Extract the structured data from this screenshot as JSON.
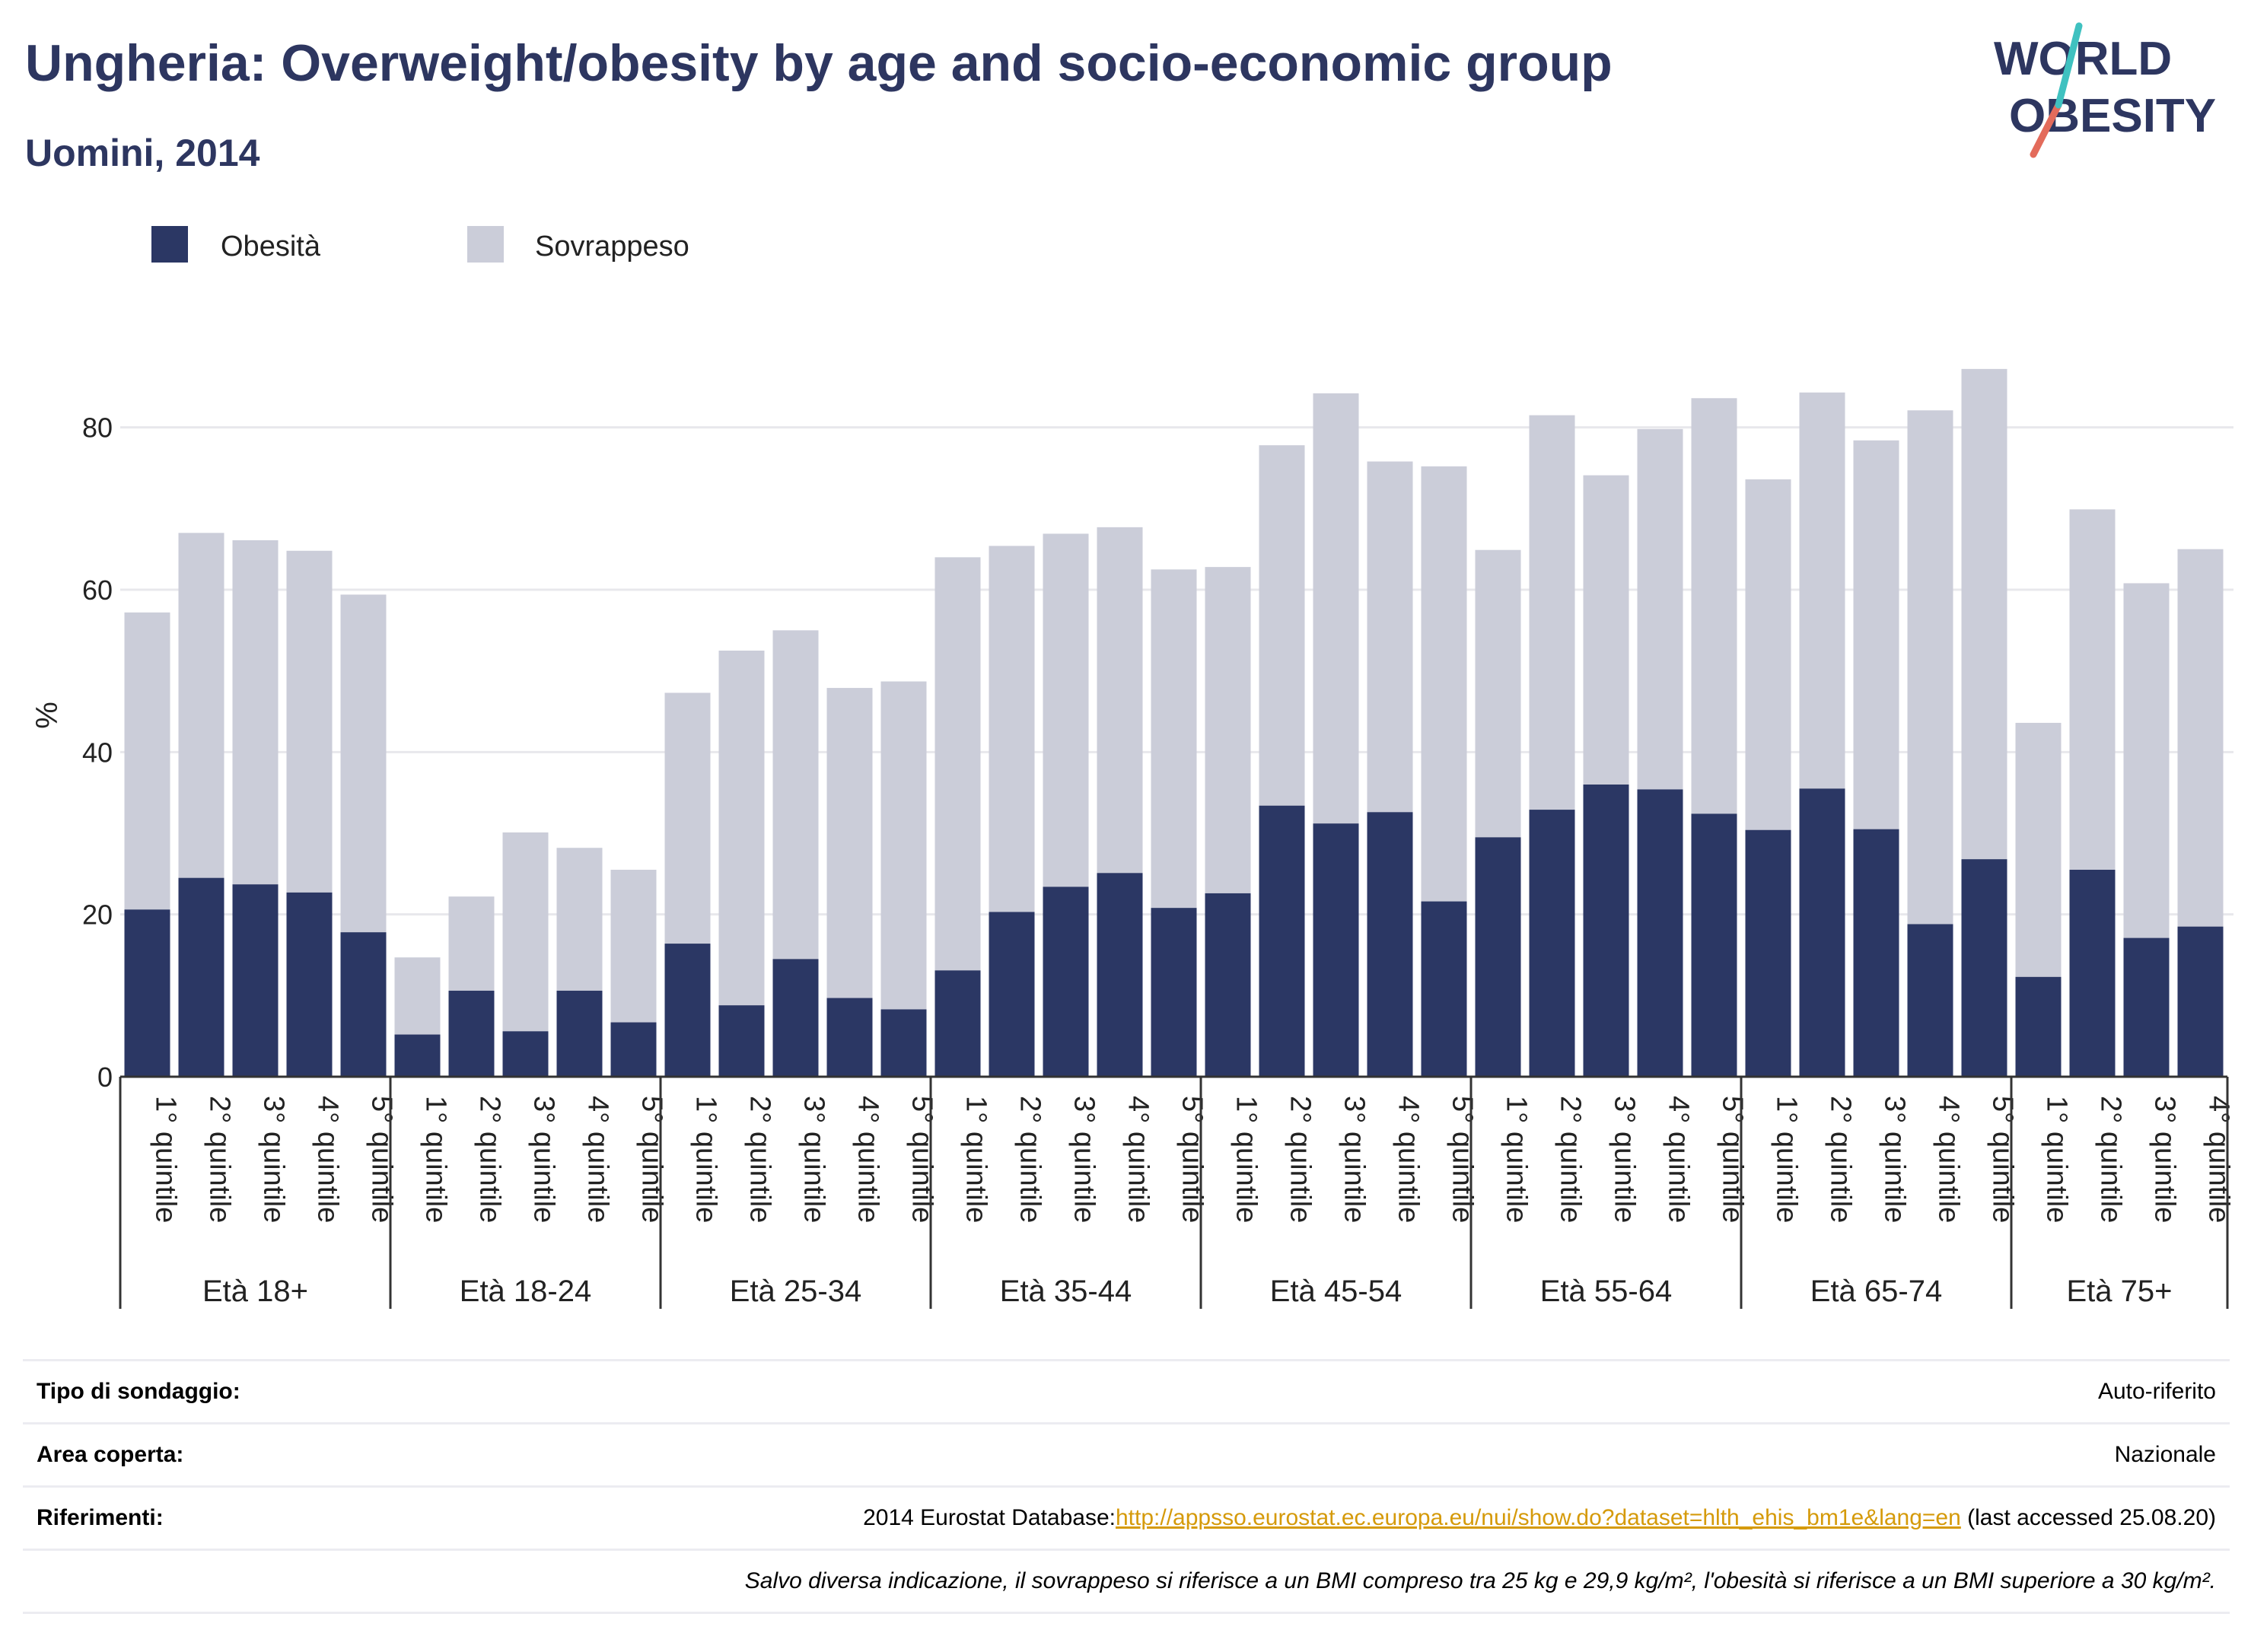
{
  "header": {
    "title": "Ungheria: Overweight/obesity by age and socio-economic group",
    "subtitle": "Uomini, 2014"
  },
  "logo": {
    "line1": "WORLD",
    "line2": "OBESITY"
  },
  "colors": {
    "obesity": "#2b3764",
    "overweight": "#cbcdd9",
    "text_dark": "#2d3660",
    "link": "#d59a0a"
  },
  "chart_data": {
    "type": "bar",
    "stacked": true,
    "ylabel": "%",
    "ylim": [
      0,
      90
    ],
    "yticks": [
      0,
      20,
      40,
      60,
      80
    ],
    "grid": true,
    "legend_position": "top-left",
    "series": [
      {
        "name": "Obesità",
        "color": "#2b3764"
      },
      {
        "name": "Sovrappeso",
        "color": "#cbcdd9"
      }
    ],
    "groups": [
      {
        "label": "Età 18+",
        "categories": [
          "1° quintile",
          "2° quintile",
          "3° quintile",
          "4° quintile",
          "5° quintile"
        ],
        "obesity": [
          20.6,
          24.5,
          23.7,
          22.7,
          17.8
        ],
        "total": [
          57.2,
          67.0,
          66.1,
          64.8,
          59.4
        ]
      },
      {
        "label": "Età 18-24",
        "categories": [
          "1° quintile",
          "2° quintile",
          "3° quintile",
          "4° quintile",
          "5° quintile"
        ],
        "obesity": [
          5.2,
          10.6,
          5.6,
          10.6,
          6.7
        ],
        "total": [
          14.7,
          22.2,
          30.1,
          28.2,
          25.5
        ]
      },
      {
        "label": "Età 25-34",
        "categories": [
          "1° quintile",
          "2° quintile",
          "3° quintile",
          "4° quintile",
          "5° quintile"
        ],
        "obesity": [
          16.4,
          8.8,
          14.5,
          9.7,
          8.3
        ],
        "total": [
          47.3,
          52.5,
          55.0,
          47.9,
          48.7
        ]
      },
      {
        "label": "Età 35-44",
        "categories": [
          "1° quintile",
          "2° quintile",
          "3° quintile",
          "4° quintile",
          "5° quintile"
        ],
        "obesity": [
          13.1,
          20.3,
          23.4,
          25.1,
          20.8
        ],
        "total": [
          64.0,
          65.4,
          66.9,
          67.7,
          62.5
        ]
      },
      {
        "label": "Età 45-54",
        "categories": [
          "1° quintile",
          "2° quintile",
          "3° quintile",
          "4° quintile",
          "5° quintile"
        ],
        "obesity": [
          22.6,
          33.4,
          31.2,
          32.6,
          21.6
        ],
        "total": [
          62.8,
          77.8,
          84.2,
          75.8,
          75.2
        ]
      },
      {
        "label": "Età 55-64",
        "categories": [
          "1° quintile",
          "2° quintile",
          "3° quintile",
          "4° quintile",
          "5° quintile"
        ],
        "obesity": [
          29.5,
          32.9,
          36.0,
          35.4,
          32.4
        ],
        "total": [
          64.9,
          81.5,
          74.1,
          79.8,
          83.6
        ]
      },
      {
        "label": "Età 65-74",
        "categories": [
          "1° quintile",
          "2° quintile",
          "3° quintile",
          "4° quintile",
          "5° quintile"
        ],
        "obesity": [
          30.4,
          35.5,
          30.5,
          18.8,
          26.8
        ],
        "total": [
          73.6,
          84.3,
          78.4,
          82.1,
          87.2
        ]
      },
      {
        "label": "Età 75+",
        "categories": [
          "1° quintile",
          "2° quintile",
          "3° quintile",
          "4° quintile"
        ],
        "obesity": [
          12.3,
          25.5,
          17.1,
          18.5
        ],
        "total": [
          43.6,
          69.9,
          60.8,
          65.0
        ]
      }
    ]
  },
  "meta": {
    "survey_label": "Tipo di sondaggio:",
    "survey_value": "Auto-riferito",
    "area_label": "Area coperta:",
    "area_value": "Nazionale",
    "refs_label": "Riferimenti:",
    "refs_prefix": "2014 Eurostat Database:",
    "refs_link": "http://appsso.eurostat.ec.europa.eu/nui/show.do?dataset=hlth_ehis_bm1e&lang=en",
    "refs_suffix": " (last accessed 25.08.20)",
    "note": "Salvo diversa indicazione, il sovrappeso si riferisce a un BMI compreso tra 25 kg e 29,9 kg/m², l'obesità si riferisce a un BMI superiore a 30 kg/m²."
  }
}
